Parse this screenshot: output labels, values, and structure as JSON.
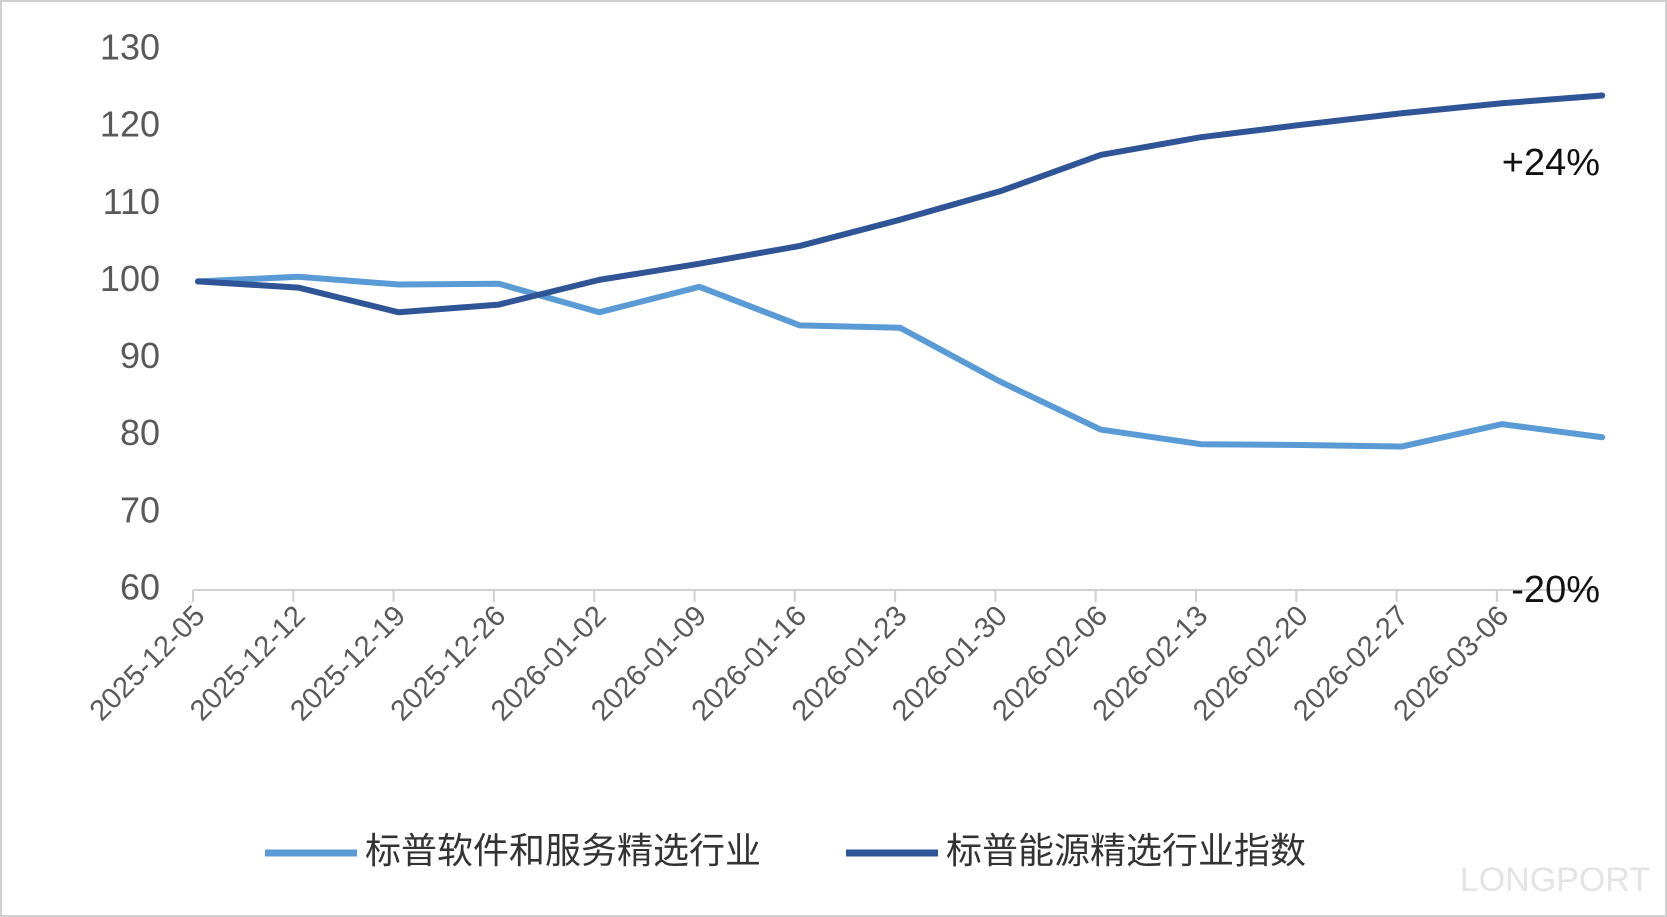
{
  "chart_data": {
    "type": "line",
    "categories": [
      "2025-12-05",
      "2025-12-12",
      "2025-12-19",
      "2025-12-26",
      "2026-01-02",
      "2026-01-09",
      "2026-01-16",
      "2026-01-23",
      "2026-01-30",
      "2026-02-06",
      "2026-02-13",
      "2026-02-20",
      "2026-02-27",
      "2026-03-06",
      null
    ],
    "series": [
      {
        "name": "标普软件和服务精选行业",
        "color": "#5b9bd5",
        "values": [
          100,
          100.6,
          99.6,
          99.7,
          96,
          99.3,
          94.3,
          94,
          87,
          80.8,
          78.9,
          78.8,
          78.6,
          81.5,
          79.8
        ]
      },
      {
        "name": "标普能源精选行业指数",
        "color": "#2f5597",
        "values": [
          100,
          99.2,
          96,
          97,
          100.2,
          102.3,
          104.6,
          108,
          111.7,
          116.4,
          118.7,
          120.3,
          121.8,
          123.1,
          124.1
        ]
      }
    ],
    "ylim": [
      60,
      130
    ],
    "yticks": [
      60,
      70,
      80,
      90,
      100,
      110,
      120,
      130
    ],
    "annotations": [
      "+24%",
      "-20%"
    ],
    "watermark": "LONGPORT",
    "legend": "bottom"
  }
}
